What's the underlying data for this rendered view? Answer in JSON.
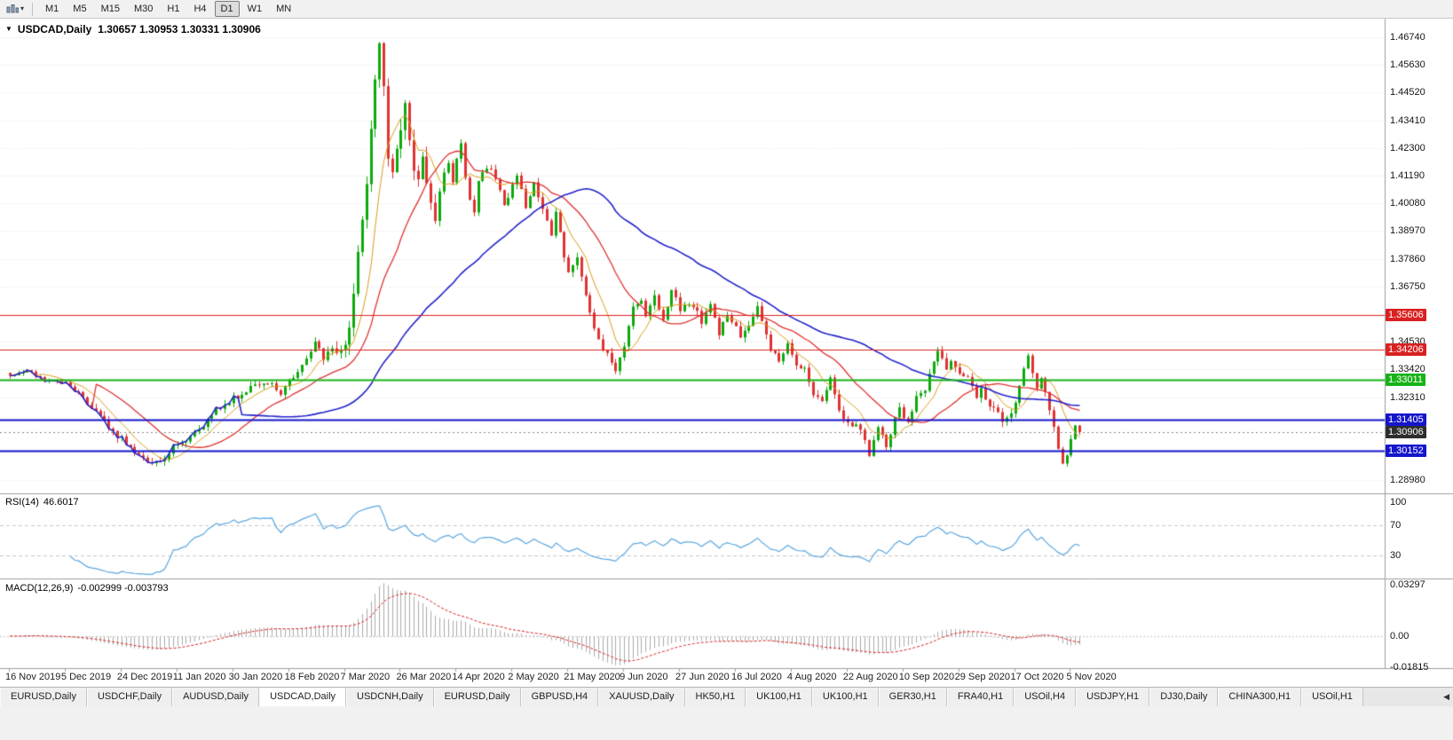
{
  "toolbar": {
    "timeframes": [
      {
        "label": "M1",
        "active": false
      },
      {
        "label": "M5",
        "active": false
      },
      {
        "label": "M15",
        "active": false
      },
      {
        "label": "M30",
        "active": false
      },
      {
        "label": "H1",
        "active": false
      },
      {
        "label": "H4",
        "active": false
      },
      {
        "label": "D1",
        "active": true
      },
      {
        "label": "W1",
        "active": false
      },
      {
        "label": "MN",
        "active": false
      }
    ]
  },
  "chart": {
    "collapse_icon": "▼",
    "symbol": "USDCAD,Daily",
    "ohlc_text": "1.30657 1.30953 1.30331 1.30906"
  },
  "indicators": {
    "rsi": {
      "name": "RSI(14)",
      "value": "46.6017",
      "color": "#5aa7e0",
      "levels": [
        70,
        30
      ],
      "scale": [
        {
          "label": "100",
          "value": 100
        },
        {
          "label": "70",
          "value": 70
        },
        {
          "label": "30",
          "value": 30
        }
      ]
    },
    "macd": {
      "name": "MACD(12,26,9)",
      "values": "-0.002999 -0.003793",
      "scale": [
        {
          "label": "0.03297",
          "value": 0.03297
        },
        {
          "label": "0.00",
          "value": 0
        },
        {
          "label": "-0.01815",
          "value": -0.01815
        }
      ]
    }
  },
  "price_scale": {
    "ticks": [
      {
        "label": "1.46740",
        "value": 1.4674
      },
      {
        "label": "1.45630",
        "value": 1.4563
      },
      {
        "label": "1.44520",
        "value": 1.4452
      },
      {
        "label": "1.43410",
        "value": 1.4341
      },
      {
        "label": "1.42300",
        "value": 1.423
      },
      {
        "label": "1.41190",
        "value": 1.4119
      },
      {
        "label": "1.40080",
        "value": 1.4008
      },
      {
        "label": "1.38970",
        "value": 1.3897
      },
      {
        "label": "1.37860",
        "value": 1.3786
      },
      {
        "label": "1.36750",
        "value": 1.3675
      },
      {
        "label": "1.34530",
        "value": 1.3453
      },
      {
        "label": "1.33420",
        "value": 1.3342
      },
      {
        "label": "1.32310",
        "value": 1.3231
      },
      {
        "label": "1.28980",
        "value": 1.2898
      }
    ],
    "badges": [
      {
        "label": "1.35606",
        "value": 1.35606,
        "color": "#d92121"
      },
      {
        "label": "1.34206",
        "value": 1.34206,
        "color": "#d92121"
      },
      {
        "label": "1.33011",
        "value": 1.33011,
        "color": "#17b317"
      },
      {
        "label": "1.31405",
        "value": 1.31405,
        "color": "#1515cc"
      },
      {
        "label": "1.30906",
        "value": 1.30906,
        "color": "#2e2e2e"
      },
      {
        "label": "1.30152",
        "value": 1.30152,
        "color": "#1515cc"
      }
    ]
  },
  "date_axis": [
    "16 Nov 2019",
    "5 Dec 2019",
    "24 Dec 2019",
    "11 Jan 2020",
    "30 Jan 2020",
    "18 Feb 2020",
    "7 Mar 2020",
    "26 Mar 2020",
    "14 Apr 2020",
    "2 May 2020",
    "21 May 2020",
    "9 Jun 2020",
    "27 Jun 2020",
    "16 Jul 2020",
    "4 Aug 2020",
    "22 Aug 2020",
    "10 Sep 2020",
    "29 Sep 2020",
    "17 Oct 2020",
    "5 Nov 2020"
  ],
  "tabs": {
    "scroll_left_icon": "◀",
    "items": [
      {
        "label": "EURUSD,Daily",
        "active": false
      },
      {
        "label": "USDCHF,Daily",
        "active": false
      },
      {
        "label": "AUDUSD,Daily",
        "active": false
      },
      {
        "label": "USDCAD,Daily",
        "active": true
      },
      {
        "label": "USDCNH,Daily",
        "active": false
      },
      {
        "label": "EURUSD,Daily",
        "active": false
      },
      {
        "label": "GBPUSD,H4",
        "active": false
      },
      {
        "label": "XAUUSD,Daily",
        "active": false
      },
      {
        "label": "HK50,H1",
        "active": false
      },
      {
        "label": "UK100,H1",
        "active": false
      },
      {
        "label": "UK100,H1",
        "active": false
      },
      {
        "label": "GER30,H1",
        "active": false
      },
      {
        "label": "FRA40,H1",
        "active": false
      },
      {
        "label": "USOil,H4",
        "active": false
      },
      {
        "label": "USDJPY,H1",
        "active": false
      },
      {
        "label": "DJ30,Daily",
        "active": false
      },
      {
        "label": "CHINA300,H1",
        "active": false
      },
      {
        "label": "USOil,H1",
        "active": false
      }
    ]
  },
  "chart_data": {
    "type": "candlestick",
    "symbol": "USDCAD",
    "timeframe": "Daily",
    "bars": 250,
    "seed": 9,
    "price_range": [
      1.2845,
      1.4745
    ],
    "rsi_range": [
      0,
      112
    ],
    "macd_range": [
      -0.0186,
      0.0334
    ],
    "up_color": "#0caa0c",
    "down_color": "#e03232",
    "macd_hist_color": "#ababab",
    "macd_signal_color": "#d92121",
    "grid_color": "#e3e3e3",
    "current_price": 1.30906,
    "current_price_line_color": "#888888",
    "horizontal_levels": [
      {
        "price": 1.35606,
        "color": "#d92121",
        "width": 1
      },
      {
        "price": 1.34206,
        "color": "#d92121",
        "width": 1
      },
      {
        "price": 1.33011,
        "color": "#17b317",
        "width": 2
      },
      {
        "price": 1.31405,
        "color": "#1515cc",
        "width": 2
      },
      {
        "price": 1.30152,
        "color": "#1515cc",
        "width": 2
      }
    ],
    "moving_averages": [
      {
        "period": 8,
        "color": "#d8a01d",
        "width": 1
      },
      {
        "period": 21,
        "color": "#e03232",
        "width": 1.3
      },
      {
        "period": 55,
        "color": "#2424cc",
        "width": 1.6
      }
    ],
    "rsi_period": 14,
    "macd": {
      "fast": 12,
      "slow": 26,
      "signal": 9
    },
    "close_anchors": [
      [
        0,
        1.332
      ],
      [
        4,
        1.334
      ],
      [
        8,
        1.33
      ],
      [
        13,
        1.3285
      ],
      [
        16,
        1.3245
      ],
      [
        20,
        1.3165
      ],
      [
        24,
        1.3095
      ],
      [
        28,
        1.303
      ],
      [
        32,
        1.2965
      ],
      [
        36,
        1.299
      ],
      [
        39,
        1.305
      ],
      [
        42,
        1.307
      ],
      [
        45,
        1.3115
      ],
      [
        48,
        1.3185
      ],
      [
        52,
        1.3225
      ],
      [
        56,
        1.3265
      ],
      [
        60,
        1.3295
      ],
      [
        63,
        1.325
      ],
      [
        66,
        1.3315
      ],
      [
        69,
        1.3385
      ],
      [
        71,
        1.3445
      ],
      [
        73,
        1.339
      ],
      [
        75,
        1.342
      ],
      [
        77,
        1.34
      ],
      [
        79,
        1.352
      ],
      [
        81,
        1.38
      ],
      [
        83,
        1.41
      ],
      [
        84,
        1.433
      ],
      [
        85,
        1.452
      ],
      [
        86,
        1.464
      ],
      [
        87,
        1.448
      ],
      [
        88,
        1.42
      ],
      [
        89,
        1.412
      ],
      [
        91,
        1.432
      ],
      [
        92,
        1.44
      ],
      [
        93,
        1.427
      ],
      [
        94,
        1.415
      ],
      [
        95,
        1.408
      ],
      [
        96,
        1.42
      ],
      [
        97,
        1.41
      ],
      [
        98,
        1.402
      ],
      [
        99,
        1.396
      ],
      [
        100,
        1.406
      ],
      [
        101,
        1.412
      ],
      [
        102,
        1.418
      ],
      [
        103,
        1.41
      ],
      [
        104,
        1.419
      ],
      [
        105,
        1.424
      ],
      [
        106,
        1.412
      ],
      [
        107,
        1.403
      ],
      [
        108,
        1.398
      ],
      [
        109,
        1.409
      ],
      [
        110,
        1.413
      ],
      [
        112,
        1.415
      ],
      [
        114,
        1.406
      ],
      [
        115,
        1.3995
      ],
      [
        117,
        1.408
      ],
      [
        118,
        1.413
      ],
      [
        120,
        1.3985
      ],
      [
        122,
        1.409
      ],
      [
        124,
        1.3985
      ],
      [
        126,
        1.3875
      ],
      [
        127,
        1.398
      ],
      [
        129,
        1.3795
      ],
      [
        130,
        1.3725
      ],
      [
        132,
        1.3785
      ],
      [
        134,
        1.3635
      ],
      [
        136,
        1.3505
      ],
      [
        138,
        1.3425
      ],
      [
        140,
        1.338
      ],
      [
        141,
        1.3335
      ],
      [
        143,
        1.3425
      ],
      [
        145,
        1.359
      ],
      [
        147,
        1.3615
      ],
      [
        148,
        1.3555
      ],
      [
        150,
        1.3635
      ],
      [
        152,
        1.3545
      ],
      [
        154,
        1.3655
      ],
      [
        156,
        1.3585
      ],
      [
        158,
        1.3605
      ],
      [
        160,
        1.3575
      ],
      [
        161,
        1.3525
      ],
      [
        163,
        1.3615
      ],
      [
        165,
        1.3485
      ],
      [
        167,
        1.3565
      ],
      [
        169,
        1.351
      ],
      [
        170,
        1.347
      ],
      [
        172,
        1.352
      ],
      [
        174,
        1.359
      ],
      [
        176,
        1.348
      ],
      [
        177,
        1.342
      ],
      [
        179,
        1.338
      ],
      [
        181,
        1.344
      ],
      [
        183,
        1.336
      ],
      [
        185,
        1.3345
      ],
      [
        187,
        1.3235
      ],
      [
        189,
        1.3225
      ],
      [
        191,
        1.3305
      ],
      [
        193,
        1.3185
      ],
      [
        194,
        1.3135
      ],
      [
        196,
        1.3115
      ],
      [
        198,
        1.3105
      ],
      [
        200,
        1.3005
      ],
      [
        202,
        1.3115
      ],
      [
        204,
        1.3025
      ],
      [
        206,
        1.3145
      ],
      [
        207,
        1.3185
      ],
      [
        209,
        1.3125
      ],
      [
        211,
        1.3225
      ],
      [
        213,
        1.3255
      ],
      [
        215,
        1.3375
      ],
      [
        216,
        1.3425
      ],
      [
        218,
        1.3335
      ],
      [
        219,
        1.3365
      ],
      [
        221,
        1.3325
      ],
      [
        223,
        1.3315
      ],
      [
        225,
        1.3225
      ],
      [
        226,
        1.3275
      ],
      [
        228,
        1.3185
      ],
      [
        230,
        1.3175
      ],
      [
        231,
        1.3135
      ],
      [
        233,
        1.3165
      ],
      [
        234,
        1.3215
      ],
      [
        236,
        1.3345
      ],
      [
        237,
        1.339
      ],
      [
        239,
        1.3265
      ],
      [
        240,
        1.3305
      ],
      [
        242,
        1.3185
      ],
      [
        243,
        1.3105
      ],
      [
        244,
        1.3025
      ],
      [
        245,
        1.2955
      ],
      [
        246,
        1.2995
      ],
      [
        247,
        1.3065
      ],
      [
        248,
        1.3115
      ],
      [
        249,
        1.30906
      ]
    ]
  }
}
